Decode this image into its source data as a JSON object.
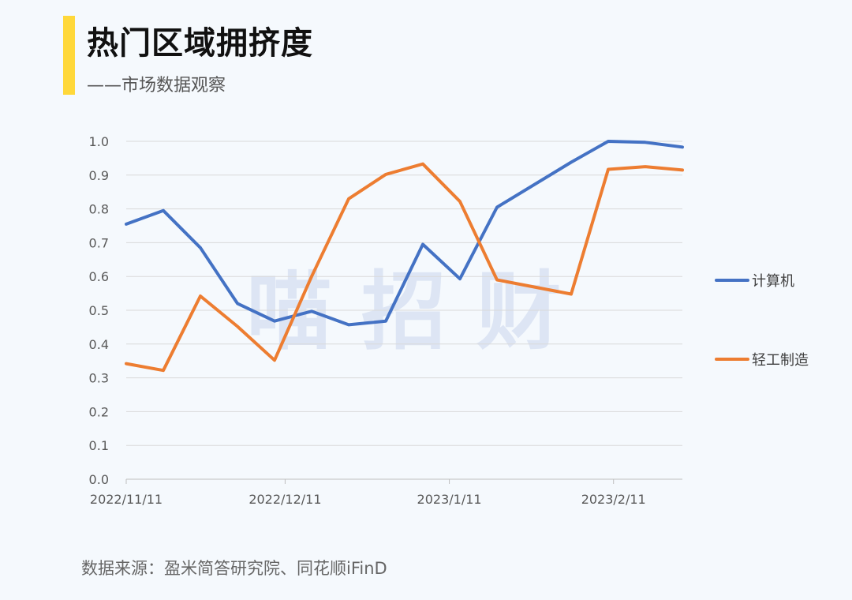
{
  "header": {
    "title": "热门区域拥挤度",
    "subtitle": "——市场数据观察",
    "accent_color": "#ffd83a"
  },
  "watermark": {
    "text": "喵 招 财",
    "color": "#c9d6ec"
  },
  "source": {
    "text": "数据来源：盈米简答研究院、同花顺iFinD"
  },
  "chart_data": {
    "type": "line",
    "title": "",
    "xlabel": "",
    "ylabel": "",
    "x_axis_type": "date",
    "x": [
      "2022-11-11",
      "2022-11-18",
      "2022-11-25",
      "2022-12-02",
      "2022-12-09",
      "2022-12-16",
      "2022-12-23",
      "2022-12-30",
      "2023-01-06",
      "2023-01-13",
      "2023-01-20",
      "2023-02-03",
      "2023-02-10",
      "2023-02-17",
      "2023-02-24"
    ],
    "x_ticks": [
      "2022/11/11",
      "2022/12/11",
      "2023/1/11",
      "2023/2/11"
    ],
    "x_tick_dates": [
      "2022-11-11",
      "2022-12-11",
      "2023-01-11",
      "2023-02-11"
    ],
    "x_range": [
      "2022-11-11",
      "2023-02-24"
    ],
    "ylim": [
      0,
      1.0
    ],
    "y_ticks": [
      "0.0",
      "0.1",
      "0.2",
      "0.3",
      "0.4",
      "0.5",
      "0.6",
      "0.7",
      "0.8",
      "0.9",
      "1.0"
    ],
    "grid": true,
    "legend_position": "right",
    "series": [
      {
        "name": "计算机",
        "color": "#4472c4",
        "values": [
          0.755,
          0.795,
          0.685,
          0.52,
          0.468,
          0.497,
          0.457,
          0.468,
          0.695,
          0.593,
          0.805,
          0.938,
          1.0,
          0.997,
          0.983
        ]
      },
      {
        "name": "轻工制造",
        "color": "#ed7d31",
        "values": [
          0.342,
          0.322,
          0.542,
          0.452,
          0.352,
          0.6,
          0.83,
          0.902,
          0.933,
          0.822,
          0.59,
          0.548,
          0.917,
          0.925,
          0.915
        ]
      }
    ]
  }
}
